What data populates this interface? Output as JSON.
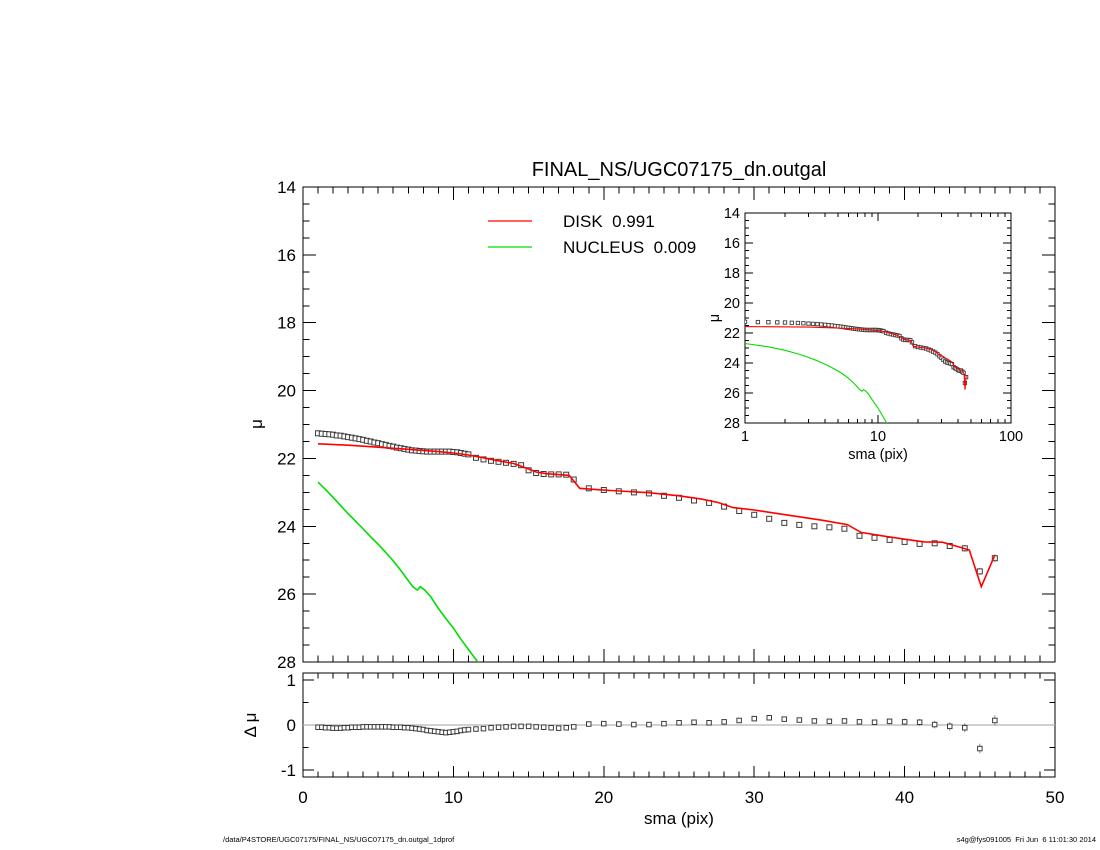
{
  "footer": {
    "left": "/data/P4STORE/UGC07175/FINAL_NS/UGC07175_dn.outgal_1dprof",
    "right": "s4g@fys091005  Fri Jun  6 11:01:30 2014"
  },
  "chart_data": {
    "type": "line",
    "title": "FINAL_NS/UGC07175_dn.outgal",
    "grid": false,
    "legend_position": "top-center-inside",
    "main": {
      "xlabel": "sma (pix)",
      "ylabel": "μ",
      "xlim": [
        0,
        50
      ],
      "ylim": [
        28,
        14
      ],
      "xticks": [
        0,
        10,
        20,
        30,
        40,
        50
      ],
      "yticks": [
        14,
        16,
        18,
        20,
        22,
        24,
        26,
        28
      ]
    },
    "residual": {
      "ylabel": "Δ μ",
      "ylim": [
        -1.15,
        1.15
      ],
      "yticks": [
        1,
        0,
        -1
      ]
    },
    "inset": {
      "xlabel": "sma (pix)",
      "ylabel": "μ",
      "xscale": "log",
      "xlim": [
        1,
        100
      ],
      "ylim": [
        28,
        14
      ],
      "xticks": [
        1,
        10,
        100
      ],
      "yticks": [
        14,
        16,
        18,
        20,
        22,
        24,
        26,
        28
      ]
    },
    "legend": [
      {
        "label": "DISK  0.991",
        "color": "#ff0000"
      },
      {
        "label": "NUCLEUS  0.009",
        "color": "#00dd00"
      }
    ],
    "profile": {
      "name": "observed surface brightness profile",
      "sma": [
        1,
        1.25,
        1.5,
        1.75,
        2,
        2.25,
        2.5,
        2.75,
        3,
        3.25,
        3.5,
        3.75,
        4,
        4.25,
        4.5,
        4.75,
        5,
        5.25,
        5.5,
        5.75,
        6,
        6.25,
        6.5,
        6.75,
        7,
        7.25,
        7.5,
        7.75,
        8,
        8.25,
        8.5,
        8.75,
        9,
        9.25,
        9.5,
        9.75,
        10,
        10.25,
        10.5,
        10.75,
        11,
        11.5,
        12,
        12.5,
        13,
        13.5,
        14,
        14.5,
        15,
        15.5,
        16,
        16.5,
        17,
        17.5,
        18,
        19,
        20,
        21,
        22,
        23,
        24,
        25,
        26,
        27,
        28,
        29,
        30,
        31,
        32,
        33,
        34,
        35,
        36,
        37,
        38,
        39,
        40,
        41,
        42,
        43,
        44,
        45,
        46
      ],
      "mu": [
        21.26,
        21.27,
        21.28,
        21.29,
        21.3,
        21.32,
        21.33,
        21.35,
        21.37,
        21.39,
        21.41,
        21.43,
        21.45,
        21.48,
        21.5,
        21.53,
        21.55,
        21.58,
        21.6,
        21.63,
        21.65,
        21.68,
        21.7,
        21.72,
        21.74,
        21.76,
        21.77,
        21.78,
        21.79,
        21.8,
        21.8,
        21.8,
        21.8,
        21.8,
        21.8,
        21.8,
        21.81,
        21.82,
        21.84,
        21.86,
        21.88,
        21.98,
        22.03,
        22.07,
        22.1,
        22.13,
        22.16,
        22.2,
        22.35,
        22.43,
        22.46,
        22.47,
        22.47,
        22.48,
        22.62,
        22.88,
        22.93,
        22.97,
        23.0,
        23.03,
        23.1,
        23.16,
        23.24,
        23.31,
        23.42,
        23.55,
        23.66,
        23.78,
        23.9,
        23.96,
        24.0,
        24.03,
        24.07,
        24.28,
        24.34,
        24.4,
        24.46,
        24.52,
        24.5,
        24.58,
        24.65,
        25.33,
        24.94
      ],
      "dmu": [
        -0.05,
        -0.05,
        -0.06,
        -0.06,
        -0.07,
        -0.07,
        -0.07,
        -0.06,
        -0.06,
        -0.05,
        -0.05,
        -0.05,
        -0.04,
        -0.04,
        -0.04,
        -0.04,
        -0.04,
        -0.04,
        -0.04,
        -0.04,
        -0.05,
        -0.05,
        -0.05,
        -0.06,
        -0.06,
        -0.07,
        -0.08,
        -0.09,
        -0.1,
        -0.12,
        -0.13,
        -0.14,
        -0.15,
        -0.16,
        -0.17,
        -0.16,
        -0.15,
        -0.14,
        -0.12,
        -0.11,
        -0.1,
        -0.09,
        -0.08,
        -0.06,
        -0.05,
        -0.04,
        -0.03,
        -0.03,
        -0.03,
        -0.04,
        -0.05,
        -0.06,
        -0.07,
        -0.06,
        -0.04,
        0.02,
        0.03,
        0.02,
        0.01,
        0.01,
        0.03,
        0.05,
        0.06,
        0.05,
        0.07,
        0.1,
        0.14,
        0.16,
        0.13,
        0.11,
        0.09,
        0.08,
        0.09,
        0.07,
        0.06,
        0.08,
        0.07,
        0.06,
        0.01,
        -0.03,
        -0.06,
        -0.52,
        0.1
      ]
    },
    "disk_model": {
      "name": "DISK model component",
      "sma": [
        1,
        3,
        5,
        7,
        9,
        10,
        11,
        12,
        13,
        14,
        14.8,
        15.5,
        16.2,
        17.7,
        18.4,
        19.5,
        21,
        23,
        25,
        26.5,
        27.6,
        28.6,
        30,
        31.5,
        33,
        34.5,
        36.2,
        37.1,
        38.5,
        40,
        41.3,
        42.5,
        43.4,
        44.3,
        45.1,
        46
      ],
      "mu": [
        21.57,
        21.61,
        21.67,
        21.73,
        21.8,
        21.84,
        21.9,
        21.98,
        22.07,
        22.15,
        22.28,
        22.4,
        22.45,
        22.5,
        22.88,
        22.92,
        22.96,
        23.01,
        23.1,
        23.2,
        23.3,
        23.45,
        23.52,
        23.62,
        23.72,
        23.82,
        23.95,
        24.18,
        24.28,
        24.38,
        24.46,
        24.47,
        24.58,
        24.7,
        25.78,
        24.85
      ]
    },
    "nucleus_model": {
      "name": "NUCLEUS model component",
      "sma": [
        1,
        1.5,
        2,
        2.5,
        3,
        3.5,
        4,
        4.5,
        5,
        5.5,
        6,
        6.5,
        7,
        7.3,
        7.6,
        7.8,
        8.1,
        8.5,
        9,
        9.5,
        10,
        10.5,
        11,
        11.5,
        11.8
      ],
      "mu": [
        22.7,
        22.92,
        23.15,
        23.39,
        23.63,
        23.85,
        24.08,
        24.31,
        24.53,
        24.77,
        25.02,
        25.3,
        25.6,
        25.78,
        25.88,
        25.78,
        25.88,
        26.08,
        26.42,
        26.72,
        27.0,
        27.33,
        27.63,
        27.93,
        28.1
      ]
    },
    "marker": {
      "fill": "#ffffff",
      "stroke": "#3c3c3c"
    },
    "colors": {
      "frame": "#000000",
      "zero_line": "#b4b4b4",
      "error_bar": "#8a8a8a"
    }
  }
}
